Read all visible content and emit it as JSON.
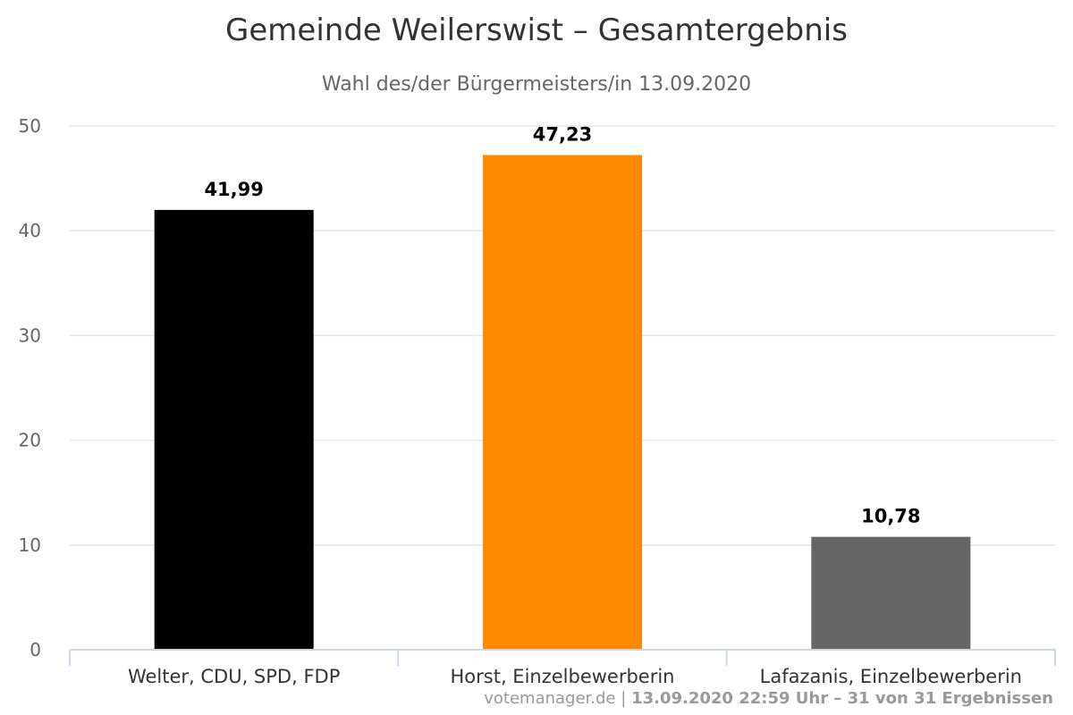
{
  "chart_data": {
    "type": "bar",
    "title": "Gemeinde Weilerswist – Gesamtergebnis",
    "subtitle": "Wahl des/der Bürgermeisters/in 13.09.2020",
    "categories": [
      "Welter, CDU, SPD, FDP",
      "Horst, Einzelbewerberin",
      "Lafazanis, Einzelbewerberin"
    ],
    "values": [
      41.99,
      47.23,
      10.78
    ],
    "value_labels": [
      "41,99",
      "47,23",
      "10,78"
    ],
    "colors": [
      "#000000",
      "#ff8a00",
      "#666666"
    ],
    "ylim": [
      0,
      50
    ],
    "yticks": [
      0,
      10,
      20,
      30,
      40,
      50
    ],
    "xlabel": "",
    "ylabel": "",
    "grid": true,
    "legend": "none"
  },
  "credits": {
    "source": "votemanager.de",
    "separator": "|",
    "status": "13.09.2020 22:59 Uhr – 31 von 31 Ergebnissen"
  }
}
